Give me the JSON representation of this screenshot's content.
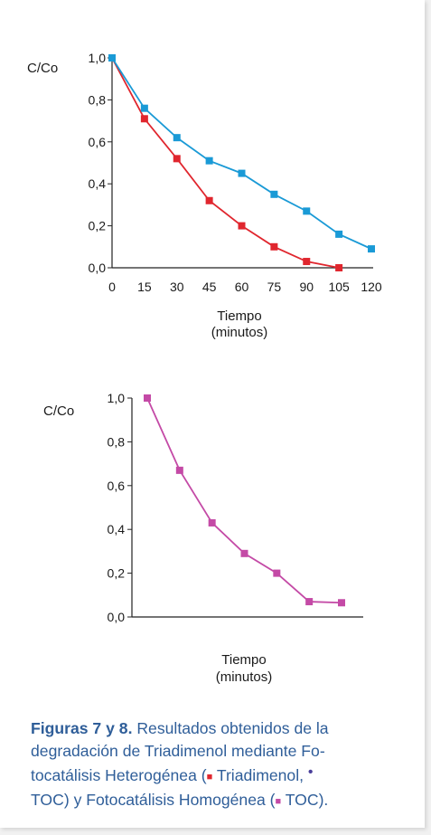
{
  "colors": {
    "triadimenol": "#e0262e",
    "toc_heterogeneous": "#1a9ad6",
    "toc_homogeneous": "#c44aa6",
    "caption": "#2f5e99",
    "bullet": "#4a3f9a"
  },
  "chart_data": [
    {
      "type": "line",
      "ylabel": "C/Co",
      "xlabel": "Tiempo",
      "xlabel_unit": "(minutos)",
      "x_ticks": [
        "0",
        "15",
        "30",
        "45",
        "60",
        "75",
        "90",
        "105",
        "120"
      ],
      "y_ticks": [
        "0,0",
        "0,2",
        "0,4",
        "0,6",
        "0,8",
        "1,0"
      ],
      "xlim": [
        0,
        120
      ],
      "ylim": [
        0,
        1
      ],
      "grid": false,
      "series": [
        {
          "color": "#e0262e",
          "x": [
            0,
            15,
            30,
            45,
            60,
            75,
            90,
            105
          ],
          "y": [
            1.0,
            0.71,
            0.52,
            0.32,
            0.2,
            0.1,
            0.03,
            0.0
          ]
        },
        {
          "color": "#1a9ad6",
          "x": [
            0,
            15,
            30,
            45,
            60,
            75,
            90,
            105,
            120
          ],
          "y": [
            1.0,
            0.76,
            0.62,
            0.51,
            0.45,
            0.35,
            0.27,
            0.16,
            0.09
          ]
        }
      ]
    },
    {
      "type": "line",
      "ylabel": "C/Co",
      "xlabel": "Tiempo",
      "xlabel_unit": "(minutos)",
      "x_ticks": [],
      "y_ticks": [
        "0,0",
        "0,2",
        "0,4",
        "0,6",
        "0,8",
        "1,0"
      ],
      "ylim": [
        0,
        1
      ],
      "grid": false,
      "series": [
        {
          "color": "#c44aa6",
          "x": [
            1,
            2,
            3,
            4,
            5,
            6,
            7
          ],
          "y": [
            1.0,
            0.67,
            0.43,
            0.29,
            0.2,
            0.07,
            0.065
          ]
        }
      ]
    }
  ],
  "caption": {
    "bold": "Figuras 7 y 8.",
    "line1_rest": " Resultados obtenidos de la",
    "line2": "degradación de Triadimenol mediante Fo-",
    "line3_a": "tocatálisis Heterogénea (",
    "square1": "■",
    "line3_b": " Triadimenol, ",
    "bullet": "•",
    "line4_a": "TOC) y Fotocatálisis Homogénea (",
    "square2": "■",
    "line4_b": " TOC)."
  }
}
